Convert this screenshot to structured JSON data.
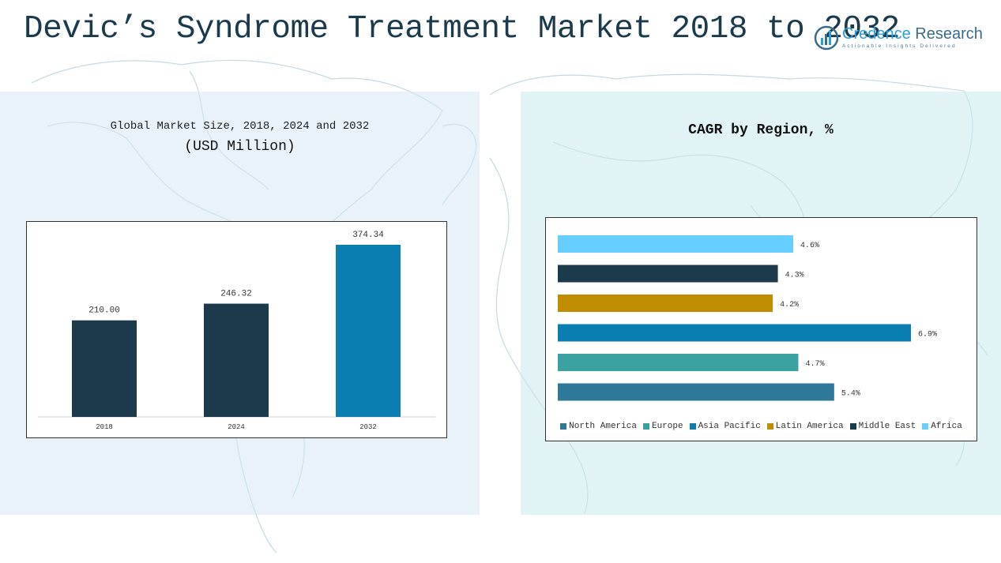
{
  "header": {
    "title": "Devic’s Syndrome Treatment Market 2018 to 2032",
    "logo_brand": "Credence",
    "logo_rest": " Research",
    "logo_tagline": "Actionable Insights Delivered"
  },
  "colors": {
    "dark_bar": "#1b3a4b",
    "highlight_bar": "#0a7eb0",
    "north_america": "#2e7899",
    "europe": "#3aa0a0",
    "asia_pacific": "#0a7eb0",
    "latin_america": "#c08c00",
    "middle_east": "#1b3a4b",
    "africa": "#66cfff"
  },
  "chart_data": [
    {
      "type": "bar",
      "title": "Global Market Size, 2018, 2024 and 2032",
      "subtitle": "(USD Million)",
      "categories": [
        "2018",
        "2024",
        "2032"
      ],
      "values": [
        210.0,
        246.32,
        374.34
      ],
      "value_labels": [
        "210.00",
        "246.32",
        "374.34"
      ],
      "ylim": [
        0,
        400
      ],
      "xlabel": "",
      "ylabel": "",
      "grid": false
    },
    {
      "type": "bar",
      "orientation": "horizontal",
      "title": "CAGR by Region, %",
      "categories": [
        "Africa",
        "Middle East",
        "Latin America",
        "Asia Pacific",
        "Europe",
        "North America"
      ],
      "values": [
        4.6,
        4.3,
        4.2,
        6.9,
        4.7,
        5.4
      ],
      "value_labels": [
        "4.6%",
        "4.3%",
        "4.2%",
        "6.9%",
        "4.7%",
        "5.4%"
      ],
      "xlim": [
        0,
        6.9
      ],
      "legend": [
        "North America",
        "Europe",
        "Asia Pacific",
        "Latin America",
        "Middle East",
        "Africa"
      ],
      "legend_position": "bottom"
    }
  ]
}
